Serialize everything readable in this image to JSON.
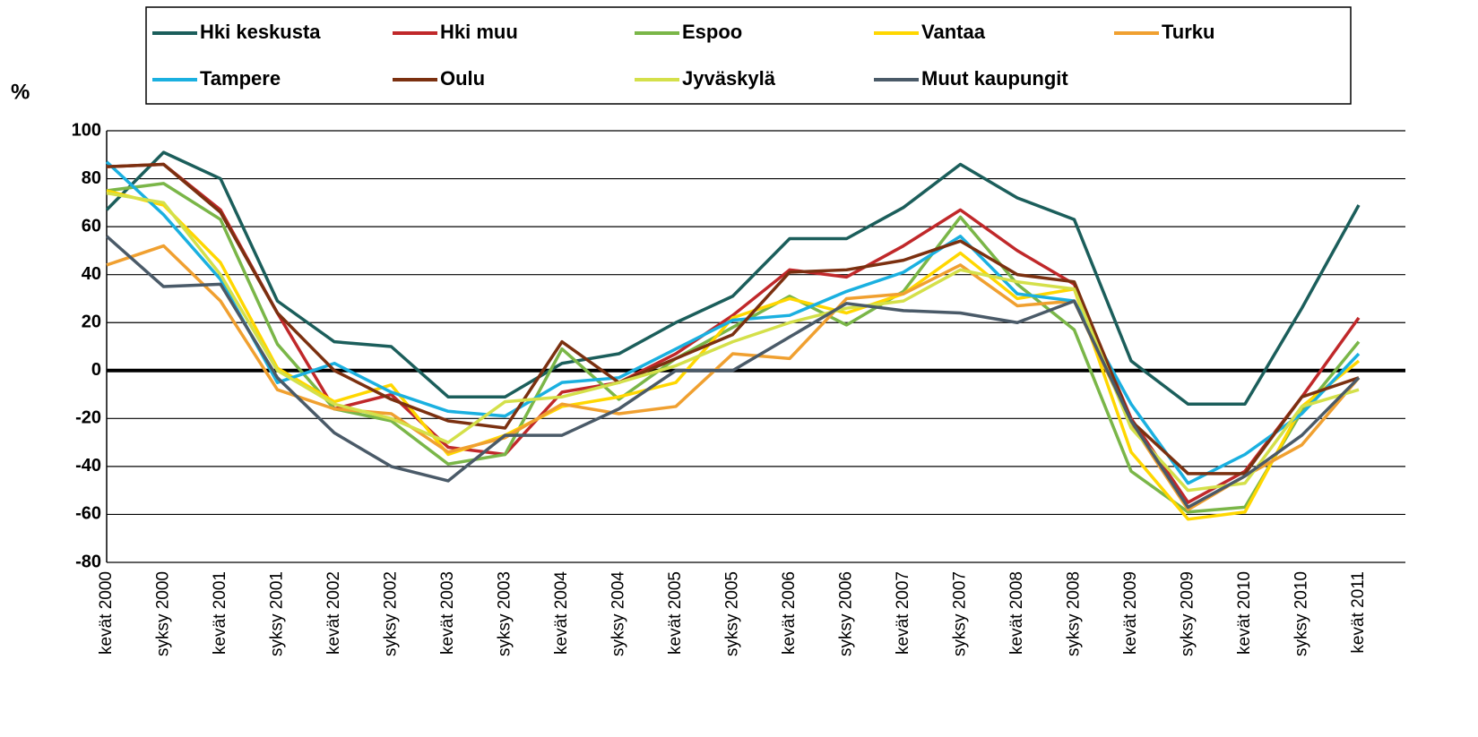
{
  "chart_data": {
    "type": "line",
    "y_label": "%",
    "legend": "top",
    "grid": true,
    "categories": [
      "kevät 2000",
      "syksy 2000",
      "kevät 2001",
      "syksy 2001",
      "kevät 2002",
      "syksy 2002",
      "kevät 2003",
      "syksy 2003",
      "kevät 2004",
      "syksy 2004",
      "kevät 2005",
      "syksy 2005",
      "kevät 2006",
      "syksy 2006",
      "kevät 2007",
      "syksy 2007",
      "kevät 2008",
      "syksy 2008",
      "kevät 2009",
      "syksy 2009",
      "kevät 2010",
      "syksy 2010",
      "kevät 2011"
    ],
    "ylim": [
      -80,
      100
    ],
    "yticks": [
      -80,
      -60,
      -40,
      -20,
      0,
      20,
      40,
      60,
      80,
      100
    ],
    "series": [
      {
        "name": "Hki keskusta",
        "color": "#1b5e5b",
        "values": [
          67,
          91,
          80,
          29,
          12,
          10,
          -11,
          -11,
          3,
          7,
          20,
          31,
          55,
          55,
          68,
          86,
          72,
          63,
          4,
          -14,
          -14,
          26,
          69
        ]
      },
      {
        "name": "Hki muu",
        "color": "#c0282a",
        "values": [
          85,
          86,
          67,
          24,
          -16,
          -10,
          -32,
          -35,
          -9,
          -5,
          7,
          23,
          42,
          39,
          52,
          67,
          50,
          36,
          -20,
          -55,
          -42,
          -11,
          22
        ]
      },
      {
        "name": "Espoo",
        "color": "#7ab648",
        "values": [
          75,
          78,
          63,
          11,
          -16,
          -21,
          -39,
          -35,
          9,
          -12,
          5,
          18,
          31,
          19,
          33,
          64,
          36,
          17,
          -42,
          -59,
          -57,
          -17,
          12
        ]
      },
      {
        "name": "Vantaa",
        "color": "#ffd700",
        "values": [
          75,
          69,
          45,
          1,
          -13,
          -6,
          -35,
          -27,
          -15,
          -11,
          -5,
          22,
          30,
          24,
          32,
          49,
          30,
          34,
          -34,
          -62,
          -59,
          -15,
          4
        ]
      },
      {
        "name": "Turku",
        "color": "#f0a030",
        "values": [
          44,
          52,
          29,
          -8,
          -16,
          -18,
          -34,
          -28,
          -14,
          -18,
          -15,
          7,
          5,
          30,
          32,
          44,
          27,
          29,
          -22,
          -58,
          -44,
          -31,
          -3
        ]
      },
      {
        "name": "Tampere",
        "color": "#1ab0e0",
        "values": [
          87,
          65,
          38,
          -5,
          3,
          -9,
          -17,
          -19,
          -5,
          -3,
          9,
          21,
          23,
          33,
          41,
          56,
          32,
          29,
          -14,
          -47,
          -35,
          -18,
          7
        ]
      },
      {
        "name": "Oulu",
        "color": "#7b3010",
        "values": [
          85,
          86,
          66,
          24,
          0,
          -12,
          -21,
          -24,
          12,
          -5,
          5,
          15,
          41,
          42,
          46,
          54,
          40,
          37,
          -21,
          -43,
          -43,
          -11,
          -3
        ]
      },
      {
        "name": "Jyväskylä",
        "color": "#d4e04a",
        "values": [
          74,
          70,
          40,
          0,
          -14,
          -20,
          -30,
          -13,
          -11,
          -5,
          2,
          12,
          20,
          26,
          29,
          42,
          37,
          34,
          -24,
          -50,
          -47,
          -15,
          -8
        ]
      },
      {
        "name": "Muut kaupungit",
        "color": "#4a5a68",
        "values": [
          56,
          35,
          36,
          -3,
          -26,
          -40,
          -46,
          -27,
          -27,
          -16,
          0,
          0,
          14,
          28,
          25,
          24,
          20,
          29,
          -21,
          -57,
          -44,
          -27,
          -3
        ]
      }
    ]
  }
}
